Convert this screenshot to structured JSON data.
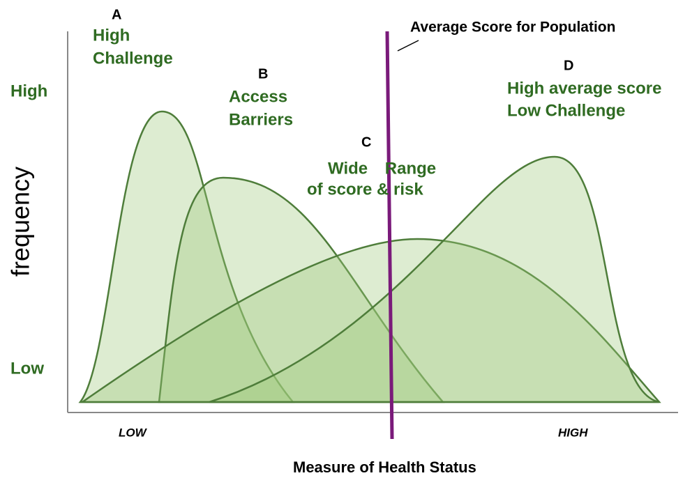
{
  "title": "Average Score for Population",
  "y_axis": {
    "label": "frequency",
    "high": "High",
    "low": "Low"
  },
  "x_axis": {
    "label": "Measure of Health Status",
    "low": "LOW",
    "high": "HIGH"
  },
  "groups": [
    {
      "letter": "A",
      "lines": [
        "High",
        "Challenge"
      ]
    },
    {
      "letter": "B",
      "lines": [
        "Access",
        "Barriers"
      ]
    },
    {
      "letter": "C",
      "lines": [
        "Wide Range",
        "of score & risk"
      ]
    },
    {
      "letter": "D",
      "lines": [
        "High average score",
        "Low Challenge"
      ]
    }
  ]
}
